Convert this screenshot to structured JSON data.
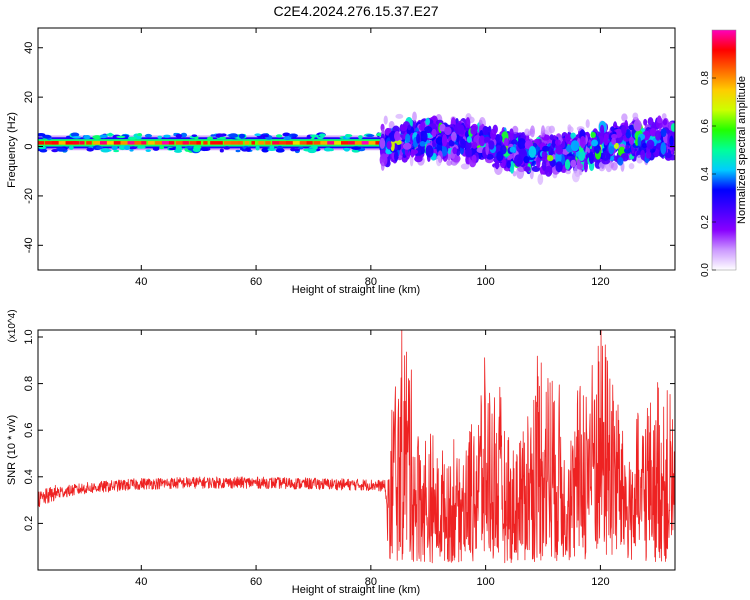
{
  "figure": {
    "title": "C2E4.2024.276.15.37.E27"
  },
  "chart_data": [
    {
      "type": "heatmap",
      "xlabel": "Height of straight line (km)",
      "ylabel": "Frequency (Hz)",
      "xlim": [
        22,
        133
      ],
      "ylim": [
        -50,
        48
      ],
      "xticks": [
        40,
        60,
        80,
        100,
        120
      ],
      "yticks": [
        -40,
        -20,
        0,
        20,
        40
      ],
      "colorbar": {
        "label": "Normalized spectral amplitude",
        "range": [
          0,
          1
        ],
        "ticks": [
          "0.0",
          "0.2",
          "0.4",
          "0.6",
          "0.8"
        ],
        "tick_values": [
          0,
          0.2,
          0.4,
          0.6,
          0.8
        ],
        "colormap": [
          "#ffffff",
          "#cc99ff",
          "#8800ff",
          "#4400ff",
          "#0000ff",
          "#00ccff",
          "#00ff99",
          "#22ff00",
          "#ccff00",
          "#ffcc00",
          "#ff6600",
          "#ff0000",
          "#ff00bb"
        ]
      },
      "regions": [
        {
          "x": [
            22,
            82
          ],
          "band_center_hz": 1.5,
          "band_halfwidth_hz": 3,
          "description": "narrow steady band, peak amplitude 0.8-1.0"
        },
        {
          "x": [
            82,
            133
          ],
          "band_center_hz": 0,
          "band_halfwidth_hz": 12,
          "description": "broad scattered energy, amplitude mostly 0.1-0.5"
        }
      ]
    },
    {
      "type": "line",
      "xlabel": "Height of straight line (km)",
      "ylabel": "SNR (10 * v/v)",
      "y_multiplier": "(x10^4)",
      "xlim": [
        22,
        133
      ],
      "ylim": [
        0,
        1.03
      ],
      "xticks": [
        40,
        60,
        80,
        100,
        120
      ],
      "yticks": [
        0.2,
        0.4,
        0.6,
        0.8,
        1.0
      ],
      "series": [
        {
          "color": "#ee2222",
          "x": [
            22,
            25,
            30,
            35,
            40,
            50,
            60,
            70,
            80,
            82.5,
            83,
            84,
            86,
            88,
            90,
            95,
            100,
            105,
            110,
            115,
            120,
            125,
            130,
            133
          ],
          "values": [
            0.3,
            0.33,
            0.35,
            0.36,
            0.37,
            0.375,
            0.375,
            0.37,
            0.365,
            0.36,
            0.2,
            0.6,
            0.9,
            0.45,
            0.3,
            0.35,
            0.65,
            0.3,
            0.8,
            0.4,
            1.0,
            0.35,
            0.6,
            0.45
          ]
        }
      ]
    }
  ]
}
